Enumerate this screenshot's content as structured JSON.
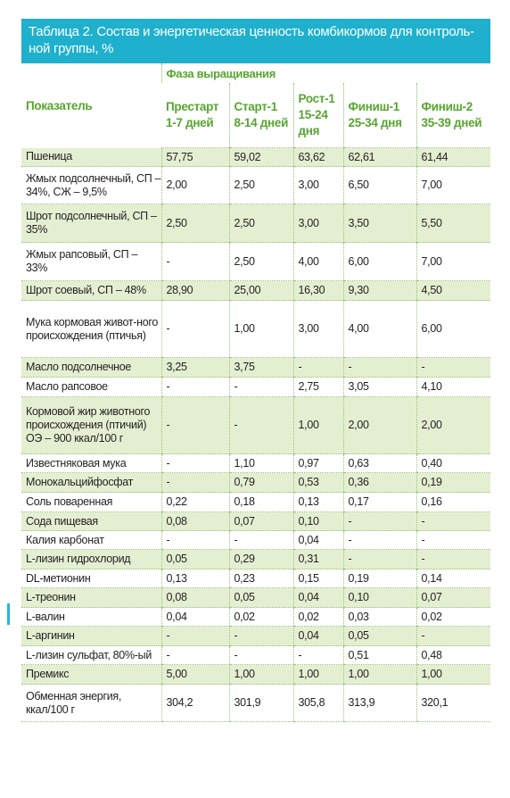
{
  "title": "Таблица 2. Состав и энергетическая ценность комбикормов для контроль-ной группы, %",
  "header": {
    "indicator": "Показатель",
    "phase": "Фаза выращивания",
    "columns": [
      {
        "name": "Престарт",
        "days": "1-7 дней"
      },
      {
        "name": "Старт-1",
        "days": "8-14 дней"
      },
      {
        "name": "Рост-1",
        "days": "15-24 дня"
      },
      {
        "name": "Финиш-1",
        "days": "25-34 дня"
      },
      {
        "name": "Финиш-2",
        "days": "35-39 дней"
      }
    ]
  },
  "rows": [
    {
      "label": "Пшеница",
      "values": [
        "57,75",
        "59,02",
        "63,62",
        "62,61",
        "61,44"
      ]
    },
    {
      "label": "Жмых подсолнечный, СП – 34%, СЖ – 9,5%",
      "values": [
        "2,00",
        "2,50",
        "3,00",
        "6,50",
        "7,00"
      ]
    },
    {
      "label": "Шрот подсолнечный, СП – 35%",
      "values": [
        "2,50",
        "2,50",
        "3,00",
        "3,50",
        "5,50"
      ]
    },
    {
      "label": "Жмых рапсовый, СП – 33%",
      "values": [
        "-",
        "2,50",
        "4,00",
        "6,00",
        "7,00"
      ]
    },
    {
      "label": "Шрот соевый, СП – 48%",
      "values": [
        "28,90",
        "25,00",
        "16,30",
        "9,30",
        "4,50"
      ]
    },
    {
      "label": "Мука кормовая живот-ного происхождения (птичья)",
      "values": [
        "-",
        "1,00",
        "3,00",
        "4,00",
        "6,00"
      ]
    },
    {
      "label": "Масло подсолнечное",
      "values": [
        "3,25",
        "3,75",
        "-",
        "-",
        "-"
      ]
    },
    {
      "label": "Масло рапсовое",
      "values": [
        "-",
        "-",
        "2,75",
        "3,05",
        "4,10"
      ]
    },
    {
      "label": "Кормовой жир животного происхождения (птичий) ОЭ – 900 ккал/100 г",
      "values": [
        "-",
        "-",
        "1,00",
        "2,00",
        "2,00"
      ]
    },
    {
      "label": "Известняковая мука",
      "values": [
        "-",
        "1,10",
        "0,97",
        "0,63",
        "0,40"
      ]
    },
    {
      "label": "Монокальцийфосфат",
      "values": [
        "-",
        "0,79",
        "0,53",
        "0,36",
        "0,19"
      ]
    },
    {
      "label": "Соль поваренная",
      "values": [
        "0,22",
        "0,18",
        "0,13",
        "0,17",
        "0,16"
      ]
    },
    {
      "label": "Сода пищевая",
      "values": [
        "0,08",
        "0,07",
        "0,10",
        "-",
        "-"
      ]
    },
    {
      "label": "Калия карбонат",
      "values": [
        "-",
        "-",
        "0,04",
        "-",
        "-"
      ]
    },
    {
      "label": "L-лизин гидрохлорид",
      "values": [
        "0,05",
        "0,29",
        "0,31",
        "-",
        "-"
      ]
    },
    {
      "label": "DL-метионин",
      "values": [
        "0,13",
        "0,23",
        "0,15",
        "0,19",
        "0,14"
      ]
    },
    {
      "label": "L-треонин",
      "values": [
        "0,08",
        "0,05",
        "0,04",
        "0,10",
        "0,07"
      ]
    },
    {
      "label": "L-валин",
      "values": [
        "0,04",
        "0,02",
        "0,02",
        "0,03",
        "0,02"
      ]
    },
    {
      "label": "L-аргинин",
      "values": [
        "-",
        "-",
        "0,04",
        "0,05",
        "-"
      ]
    },
    {
      "label": "L-лизин сульфат, 80%-ый",
      "values": [
        "-",
        "-",
        "-",
        "0,51",
        "0,48"
      ]
    },
    {
      "label": "Премикс",
      "values": [
        "5,00",
        "1,00",
        "1,00",
        "1,00",
        "1,00"
      ]
    },
    {
      "label": "Обменная энергия, ккал/100 г",
      "values": [
        "304,2",
        "301,9",
        "305,8",
        "313,9",
        "320,1"
      ]
    }
  ],
  "colors": {
    "title_bg": "#1fb0cd",
    "header_text": "#57a530",
    "row_shade": "#e4efd2"
  }
}
